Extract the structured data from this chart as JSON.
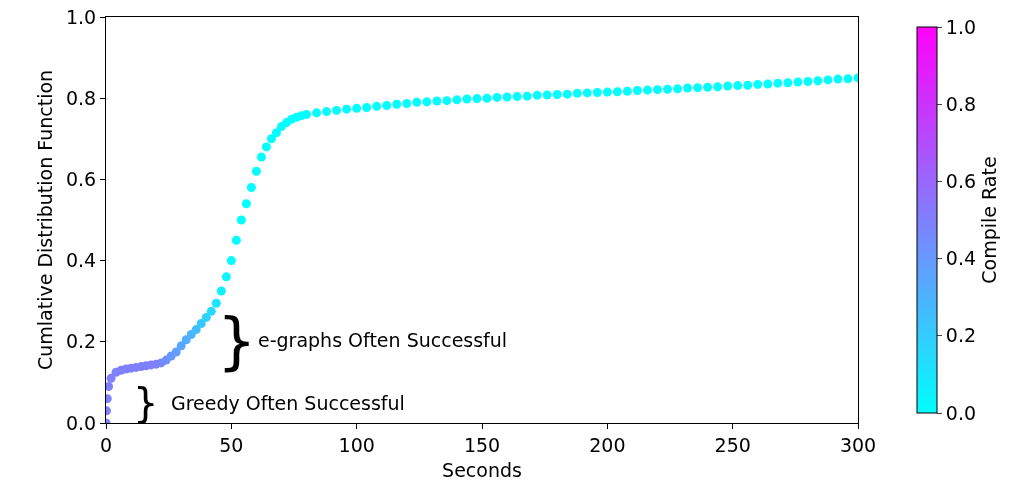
{
  "chart_data": {
    "type": "scatter",
    "xlabel": "Seconds",
    "ylabel": "Cumlative Distribution Function",
    "clabel": "Compile Rate",
    "x": [
      0,
      0.2,
      0.5,
      1,
      2,
      4,
      6,
      8,
      10,
      12,
      14,
      16,
      18,
      20,
      22,
      24,
      26,
      28,
      30,
      32,
      34,
      36,
      38,
      40,
      42,
      44,
      46,
      48,
      50,
      52,
      54,
      56,
      58,
      60,
      62,
      64,
      66,
      68,
      70,
      72,
      74,
      76,
      78,
      80,
      84,
      88,
      92,
      96,
      100,
      104,
      108,
      112,
      116,
      120,
      124,
      128,
      132,
      136,
      140,
      144,
      148,
      152,
      156,
      160,
      164,
      168,
      172,
      176,
      180,
      184,
      188,
      192,
      196,
      200,
      204,
      208,
      212,
      216,
      220,
      224,
      228,
      232,
      236,
      240,
      244,
      248,
      252,
      256,
      260,
      264,
      268,
      272,
      276,
      280,
      284,
      288,
      292,
      296,
      300
    ],
    "series": [
      {
        "values": [
          0,
          0.03,
          0.06,
          0.09,
          0.11,
          0.125,
          0.13,
          0.133,
          0.135,
          0.137,
          0.139,
          0.141,
          0.143,
          0.145,
          0.148,
          0.155,
          0.165,
          0.175,
          0.19,
          0.205,
          0.218,
          0.23,
          0.245,
          0.26,
          0.275,
          0.295,
          0.325,
          0.36,
          0.4,
          0.45,
          0.5,
          0.54,
          0.58,
          0.62,
          0.655,
          0.68,
          0.7,
          0.715,
          0.73,
          0.74,
          0.748,
          0.753,
          0.757,
          0.76,
          0.764,
          0.767,
          0.77,
          0.773,
          0.775,
          0.777,
          0.78,
          0.782,
          0.785,
          0.787,
          0.79,
          0.791,
          0.793,
          0.794,
          0.796,
          0.798,
          0.799,
          0.8,
          0.802,
          0.803,
          0.804,
          0.805,
          0.807,
          0.808,
          0.809,
          0.81,
          0.812,
          0.813,
          0.814,
          0.815,
          0.816,
          0.817,
          0.819,
          0.82,
          0.821,
          0.822,
          0.823,
          0.825,
          0.826,
          0.827,
          0.828,
          0.83,
          0.831,
          0.832,
          0.834,
          0.835,
          0.837,
          0.838,
          0.84,
          0.841,
          0.843,
          0.845,
          0.847,
          0.848,
          0.85
        ],
        "cvalues": [
          0.5,
          0.5,
          0.5,
          0.5,
          0.5,
          0.5,
          0.5,
          0.5,
          0.5,
          0.5,
          0.5,
          0.5,
          0.5,
          0.5,
          0.47,
          0.44,
          0.41,
          0.38,
          0.35,
          0.32,
          0.29,
          0.26,
          0.22,
          0.18,
          0.14,
          0.1,
          0.06,
          0.03,
          0.01,
          0,
          0,
          0,
          0,
          0,
          0,
          0,
          0,
          0,
          0,
          0,
          0,
          0,
          0,
          0,
          0,
          0,
          0,
          0,
          0,
          0,
          0,
          0,
          0,
          0,
          0,
          0,
          0,
          0,
          0,
          0,
          0,
          0,
          0,
          0,
          0,
          0,
          0,
          0,
          0,
          0,
          0,
          0,
          0,
          0,
          0,
          0,
          0,
          0,
          0,
          0,
          0,
          0,
          0,
          0,
          0,
          0,
          0,
          0,
          0,
          0,
          0,
          0,
          0,
          0,
          0,
          0,
          0,
          0,
          0
        ]
      }
    ],
    "xlim": [
      0,
      300
    ],
    "xticks": [
      0,
      50,
      100,
      150,
      200,
      250,
      300
    ],
    "ylim": [
      0,
      1.0
    ],
    "yticks": [
      {
        "value": 0,
        "label": "0.0"
      },
      0.2,
      0.4,
      0.6,
      0.8,
      {
        "value": 1,
        "label": "1.0"
      }
    ],
    "clim": [
      0,
      1.0
    ],
    "cticks": [
      {
        "value": 0,
        "label": "0.0"
      },
      0.2,
      0.4,
      0.6,
      0.8,
      {
        "value": 1,
        "label": "1.0"
      }
    ],
    "marker": "circle",
    "annotations": [
      "}",
      "e-graphs Often Successful",
      "}",
      "Greedy Often Successful"
    ]
  }
}
